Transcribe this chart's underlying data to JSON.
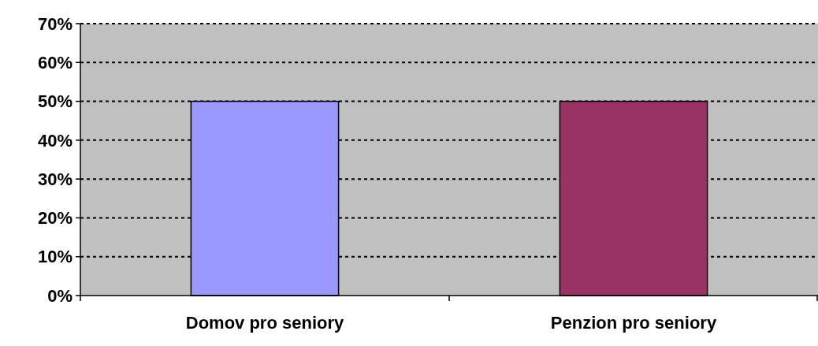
{
  "chart_data": {
    "type": "bar",
    "categories": [
      "Domov pro seniory",
      "Penzion pro seniory"
    ],
    "values": [
      50,
      50
    ],
    "colors": [
      "#9999ff",
      "#993366"
    ],
    "ylim": [
      0,
      70
    ],
    "yticks": [
      {
        "value": 0,
        "label": "0%"
      },
      {
        "value": 10,
        "label": "10%"
      },
      {
        "value": 20,
        "label": "20%"
      },
      {
        "value": 30,
        "label": "30%"
      },
      {
        "value": 40,
        "label": "40%"
      },
      {
        "value": 50,
        "label": "50%"
      },
      {
        "value": 60,
        "label": "60%"
      },
      {
        "value": 70,
        "label": "70%"
      }
    ],
    "grid": "y"
  }
}
